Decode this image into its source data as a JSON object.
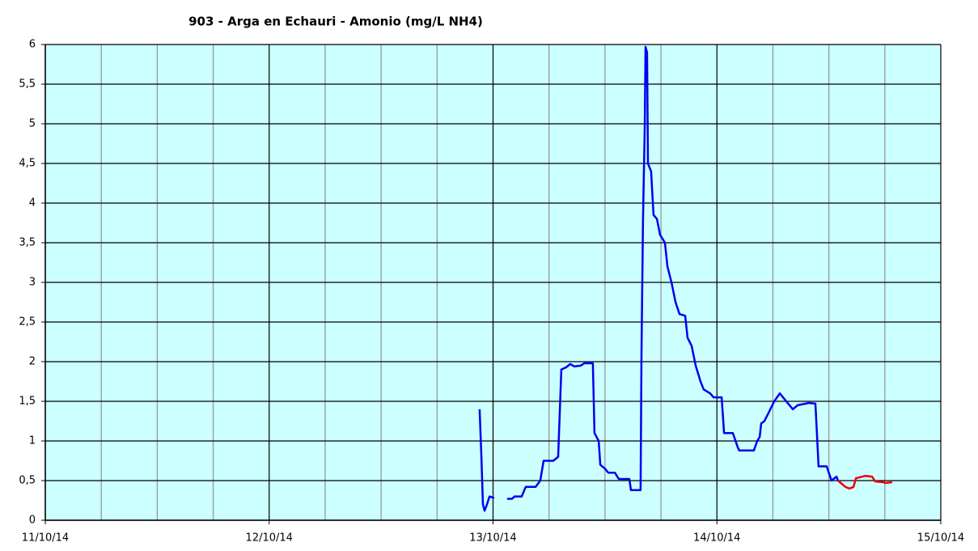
{
  "chart_data": {
    "type": "line",
    "title": "903 - Arga en Echauri - Amonio (mg/L NH4)",
    "xlim": [
      0,
      4
    ],
    "xticks": [
      {
        "value": 0,
        "label": "11/10/14"
      },
      {
        "value": 1,
        "label": "12/10/14"
      },
      {
        "value": 2,
        "label": "13/10/14"
      },
      {
        "value": 3,
        "label": "14/10/14"
      },
      {
        "value": 4,
        "label": "15/10/14"
      }
    ],
    "xminor_ticks": [
      0.25,
      0.5,
      0.75,
      1.25,
      1.5,
      1.75,
      2.25,
      2.5,
      2.75,
      3.25,
      3.5,
      3.75
    ],
    "ylim": [
      0,
      6
    ],
    "yticks": [
      0,
      {
        "value": 0.5,
        "label": "0,5"
      },
      1,
      {
        "value": 1.5,
        "label": "1,5"
      },
      2,
      {
        "value": 2.5,
        "label": "2,5"
      },
      3,
      {
        "value": 3.5,
        "label": "3,5"
      },
      4,
      {
        "value": 4.5,
        "label": "4,5"
      },
      5,
      {
        "value": 5.5,
        "label": "5,5"
      },
      6
    ],
    "grid": true,
    "background": "#ccffff",
    "series": [
      {
        "color": "#0000ee",
        "x": [
          1.94,
          1.948,
          1.955,
          1.962,
          1.973,
          1.984,
          2.005,
          null,
          2.063,
          2.085,
          2.096,
          2.128,
          2.146,
          2.19,
          2.211,
          2.226,
          2.269,
          2.291,
          2.305,
          2.327,
          2.345,
          2.363,
          2.392,
          2.407,
          2.446,
          2.453,
          2.472,
          2.479,
          2.5,
          2.515,
          2.544,
          2.562,
          2.609,
          2.616,
          2.659,
          2.663,
          2.67,
          2.678,
          2.681,
          2.688,
          2.692,
          2.706,
          2.717,
          2.732,
          2.746,
          2.768,
          2.779,
          2.797,
          2.815,
          2.833,
          2.858,
          2.869,
          2.887,
          2.905,
          2.927,
          2.941,
          2.97,
          2.985,
          3.021,
          3.032,
          3.071,
          3.093,
          3.1,
          3.165,
          3.18,
          3.191,
          3.198,
          3.212,
          3.23,
          3.256,
          3.281,
          3.31,
          3.339,
          3.36,
          3.411,
          3.44,
          3.447,
          3.454,
          3.49,
          3.512,
          3.534,
          3.541
        ],
        "values": [
          1.4,
          0.8,
          0.2,
          0.12,
          0.2,
          0.3,
          0.28,
          null,
          0.27,
          0.27,
          0.3,
          0.3,
          0.42,
          0.42,
          0.5,
          0.75,
          0.75,
          0.8,
          1.9,
          1.93,
          1.97,
          1.94,
          1.95,
          1.98,
          1.98,
          1.1,
          1.0,
          0.7,
          0.65,
          0.6,
          0.6,
          0.52,
          0.52,
          0.38,
          0.38,
          2.1,
          3.8,
          5.0,
          5.97,
          5.9,
          4.5,
          4.4,
          3.85,
          3.8,
          3.6,
          3.5,
          3.2,
          3.0,
          2.75,
          2.6,
          2.58,
          2.3,
          2.2,
          1.95,
          1.75,
          1.65,
          1.6,
          1.55,
          1.55,
          1.1,
          1.1,
          0.92,
          0.88,
          0.88,
          1.0,
          1.05,
          1.22,
          1.25,
          1.35,
          1.5,
          1.6,
          1.5,
          1.4,
          1.45,
          1.48,
          1.47,
          1.07,
          0.68,
          0.68,
          0.5,
          0.55,
          0.5
        ]
      },
      {
        "color": "#ee0000",
        "x": [
          3.541,
          3.574,
          3.592,
          3.61,
          3.621,
          3.664,
          3.693,
          3.707,
          3.743,
          3.755,
          3.783
        ],
        "values": [
          0.5,
          0.42,
          0.4,
          0.42,
          0.53,
          0.56,
          0.55,
          0.49,
          0.48,
          0.47,
          0.48
        ]
      }
    ]
  }
}
